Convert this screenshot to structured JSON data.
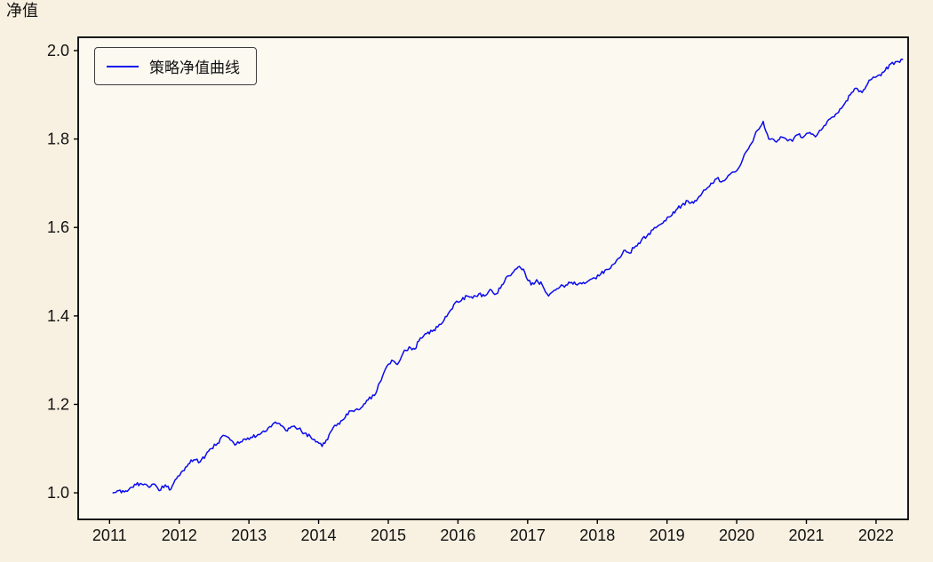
{
  "chart_data": {
    "type": "line",
    "title": "",
    "xlabel": "",
    "ylabel": "净值",
    "legend_position": "upper-left",
    "grid": false,
    "colors": {
      "line": "#0b0bee",
      "background": "#f8f1e1",
      "plot_background": "#fcf9f0",
      "axis": "#000000",
      "text": "#111111"
    },
    "xlim": [
      2010.55,
      2022.46
    ],
    "ylim": [
      0.94,
      2.03
    ],
    "xticks": [
      2011,
      2012,
      2013,
      2014,
      2015,
      2016,
      2017,
      2018,
      2019,
      2020,
      2021,
      2022
    ],
    "xtick_labels": [
      "2011",
      "2012",
      "2013",
      "2014",
      "2015",
      "2016",
      "2017",
      "2018",
      "2019",
      "2020",
      "2021",
      "2022"
    ],
    "yticks": [
      1.0,
      1.2,
      1.4,
      1.6,
      1.8,
      2.0
    ],
    "ytick_labels": [
      "1.0",
      "1.2",
      "1.4",
      "1.6",
      "1.8",
      "2.0"
    ],
    "series": [
      {
        "name": "策略净值曲线",
        "points": [
          [
            2011.05,
            1.0
          ],
          [
            2011.13,
            1.005
          ],
          [
            2011.21,
            1.002
          ],
          [
            2011.3,
            1.012
          ],
          [
            2011.38,
            1.018
          ],
          [
            2011.46,
            1.02
          ],
          [
            2011.55,
            1.015
          ],
          [
            2011.63,
            1.02
          ],
          [
            2011.71,
            1.005
          ],
          [
            2011.8,
            1.018
          ],
          [
            2011.88,
            1.008
          ],
          [
            2011.96,
            1.032
          ],
          [
            2012.05,
            1.05
          ],
          [
            2012.13,
            1.065
          ],
          [
            2012.21,
            1.075
          ],
          [
            2012.3,
            1.07
          ],
          [
            2012.38,
            1.085
          ],
          [
            2012.46,
            1.1
          ],
          [
            2012.55,
            1.112
          ],
          [
            2012.63,
            1.13
          ],
          [
            2012.71,
            1.125
          ],
          [
            2012.8,
            1.108
          ],
          [
            2012.88,
            1.115
          ],
          [
            2012.96,
            1.12
          ],
          [
            2013.05,
            1.125
          ],
          [
            2013.13,
            1.132
          ],
          [
            2013.21,
            1.14
          ],
          [
            2013.3,
            1.15
          ],
          [
            2013.38,
            1.16
          ],
          [
            2013.46,
            1.152
          ],
          [
            2013.55,
            1.14
          ],
          [
            2013.63,
            1.15
          ],
          [
            2013.71,
            1.145
          ],
          [
            2013.8,
            1.135
          ],
          [
            2013.88,
            1.128
          ],
          [
            2013.96,
            1.115
          ],
          [
            2014.05,
            1.105
          ],
          [
            2014.13,
            1.12
          ],
          [
            2014.21,
            1.148
          ],
          [
            2014.3,
            1.155
          ],
          [
            2014.38,
            1.17
          ],
          [
            2014.46,
            1.185
          ],
          [
            2014.55,
            1.19
          ],
          [
            2014.63,
            1.195
          ],
          [
            2014.71,
            1.21
          ],
          [
            2014.8,
            1.22
          ],
          [
            2014.88,
            1.25
          ],
          [
            2014.96,
            1.28
          ],
          [
            2015.05,
            1.3
          ],
          [
            2015.13,
            1.29
          ],
          [
            2015.21,
            1.315
          ],
          [
            2015.3,
            1.33
          ],
          [
            2015.38,
            1.325
          ],
          [
            2015.46,
            1.35
          ],
          [
            2015.55,
            1.36
          ],
          [
            2015.63,
            1.365
          ],
          [
            2015.71,
            1.375
          ],
          [
            2015.8,
            1.39
          ],
          [
            2015.88,
            1.41
          ],
          [
            2015.96,
            1.43
          ],
          [
            2016.05,
            1.435
          ],
          [
            2016.13,
            1.445
          ],
          [
            2016.21,
            1.44
          ],
          [
            2016.3,
            1.45
          ],
          [
            2016.38,
            1.445
          ],
          [
            2016.46,
            1.46
          ],
          [
            2016.55,
            1.45
          ],
          [
            2016.63,
            1.47
          ],
          [
            2016.71,
            1.49
          ],
          [
            2016.8,
            1.5
          ],
          [
            2016.88,
            1.512
          ],
          [
            2016.96,
            1.498
          ],
          [
            2017.05,
            1.47
          ],
          [
            2017.13,
            1.482
          ],
          [
            2017.21,
            1.47
          ],
          [
            2017.3,
            1.445
          ],
          [
            2017.38,
            1.458
          ],
          [
            2017.46,
            1.465
          ],
          [
            2017.55,
            1.47
          ],
          [
            2017.63,
            1.476
          ],
          [
            2017.71,
            1.47
          ],
          [
            2017.8,
            1.476
          ],
          [
            2017.88,
            1.48
          ],
          [
            2017.96,
            1.486
          ],
          [
            2018.05,
            1.495
          ],
          [
            2018.13,
            1.505
          ],
          [
            2018.21,
            1.515
          ],
          [
            2018.3,
            1.53
          ],
          [
            2018.38,
            1.548
          ],
          [
            2018.46,
            1.542
          ],
          [
            2018.55,
            1.558
          ],
          [
            2018.63,
            1.57
          ],
          [
            2018.71,
            1.58
          ],
          [
            2018.8,
            1.595
          ],
          [
            2018.88,
            1.605
          ],
          [
            2018.96,
            1.615
          ],
          [
            2019.05,
            1.625
          ],
          [
            2019.13,
            1.64
          ],
          [
            2019.21,
            1.65
          ],
          [
            2019.3,
            1.66
          ],
          [
            2019.38,
            1.655
          ],
          [
            2019.46,
            1.67
          ],
          [
            2019.55,
            1.685
          ],
          [
            2019.63,
            1.7
          ],
          [
            2019.71,
            1.71
          ],
          [
            2019.8,
            1.705
          ],
          [
            2019.88,
            1.718
          ],
          [
            2019.96,
            1.725
          ],
          [
            2020.05,
            1.74
          ],
          [
            2020.13,
            1.77
          ],
          [
            2020.21,
            1.79
          ],
          [
            2020.3,
            1.82
          ],
          [
            2020.38,
            1.84
          ],
          [
            2020.46,
            1.8
          ],
          [
            2020.55,
            1.795
          ],
          [
            2020.63,
            1.805
          ],
          [
            2020.71,
            1.8
          ],
          [
            2020.8,
            1.795
          ],
          [
            2020.88,
            1.81
          ],
          [
            2020.96,
            1.805
          ],
          [
            2021.05,
            1.815
          ],
          [
            2021.13,
            1.805
          ],
          [
            2021.21,
            1.82
          ],
          [
            2021.3,
            1.84
          ],
          [
            2021.38,
            1.85
          ],
          [
            2021.46,
            1.86
          ],
          [
            2021.55,
            1.88
          ],
          [
            2021.63,
            1.9
          ],
          [
            2021.71,
            1.915
          ],
          [
            2021.8,
            1.905
          ],
          [
            2021.88,
            1.925
          ],
          [
            2021.96,
            1.94
          ],
          [
            2022.05,
            1.945
          ],
          [
            2022.13,
            1.955
          ],
          [
            2022.21,
            1.97
          ],
          [
            2022.3,
            1.975
          ],
          [
            2022.38,
            1.98
          ]
        ]
      }
    ]
  }
}
